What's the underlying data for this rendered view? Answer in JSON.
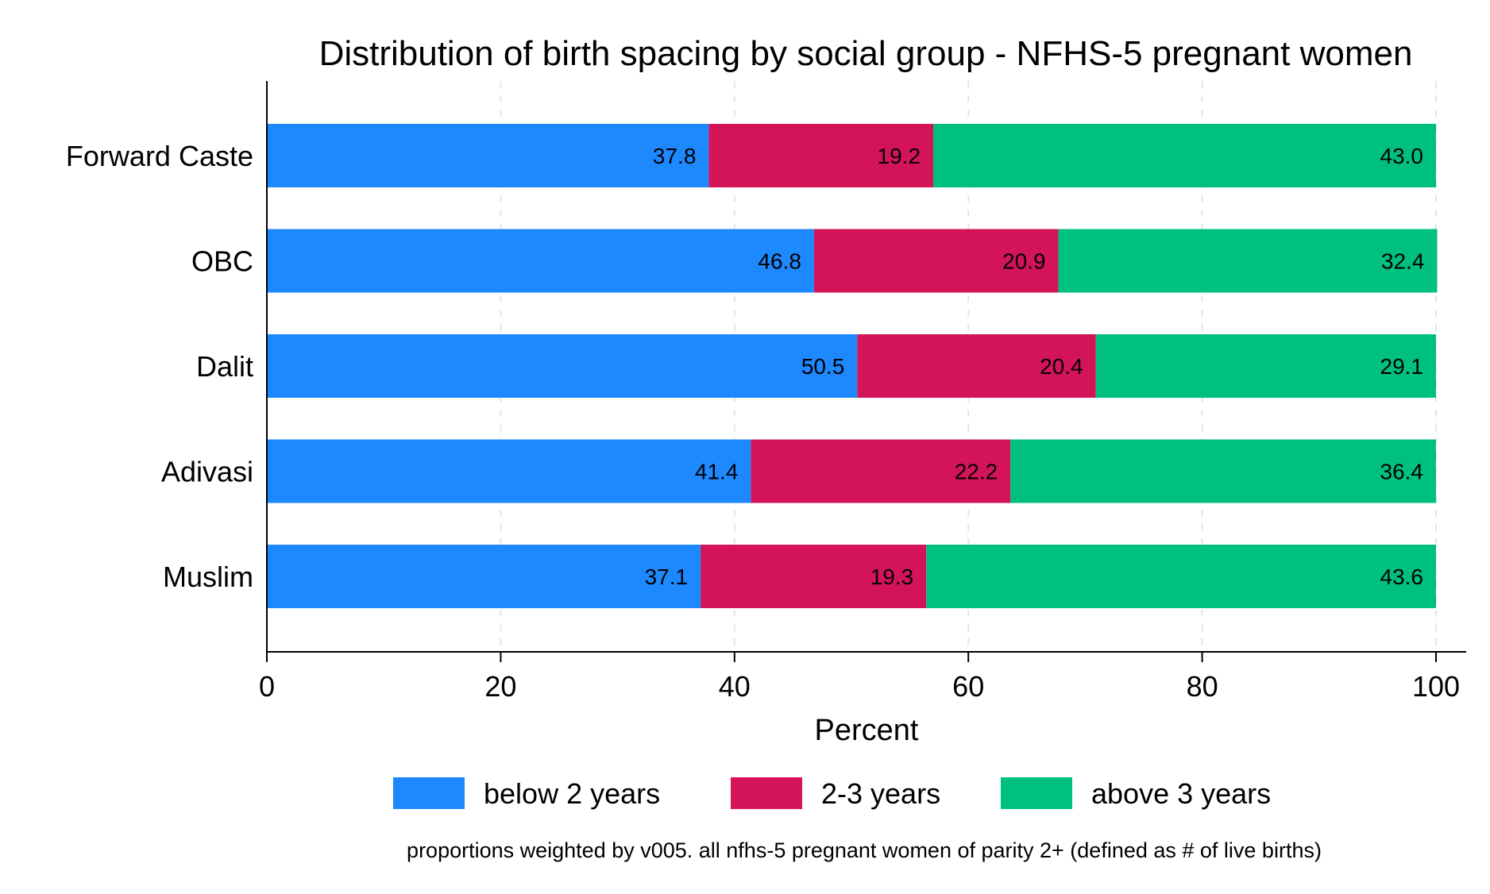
{
  "chart_data": {
    "type": "bar",
    "orientation": "horizontal",
    "stacked": true,
    "title": "Distribution of birth spacing by social group - NFHS-5 pregnant women",
    "xlabel": "Percent",
    "ylabel": "",
    "xlim": [
      0,
      100
    ],
    "xticks": [
      "0",
      "20",
      "40",
      "60",
      "80",
      "100"
    ],
    "grid": "vertical dashed",
    "legend_position": "bottom",
    "categories": [
      "Forward Caste",
      "OBC",
      "Dalit",
      "Adivasi",
      "Muslim"
    ],
    "series": [
      {
        "name": "below 2 years",
        "color": "#1e88ff",
        "values": [
          37.8,
          46.8,
          50.5,
          41.4,
          37.1
        ],
        "labels": [
          "37.8",
          "46.8",
          "50.5",
          "41.4",
          "37.1"
        ]
      },
      {
        "name": "2-3 years",
        "color": "#d41459",
        "values": [
          19.2,
          20.9,
          20.4,
          22.2,
          19.3
        ],
        "labels": [
          "19.2",
          "20.9",
          "20.4",
          "22.2",
          "19.3"
        ]
      },
      {
        "name": "above 3 years",
        "color": "#00c080",
        "values": [
          43.0,
          32.4,
          29.1,
          36.4,
          43.6
        ],
        "labels": [
          "43.0",
          "32.4",
          "29.1",
          "36.4",
          "43.6"
        ]
      }
    ],
    "note": "proportions weighted by v005. all nfhs-5 pregnant women of parity 2+ (defined as # of live births)"
  }
}
